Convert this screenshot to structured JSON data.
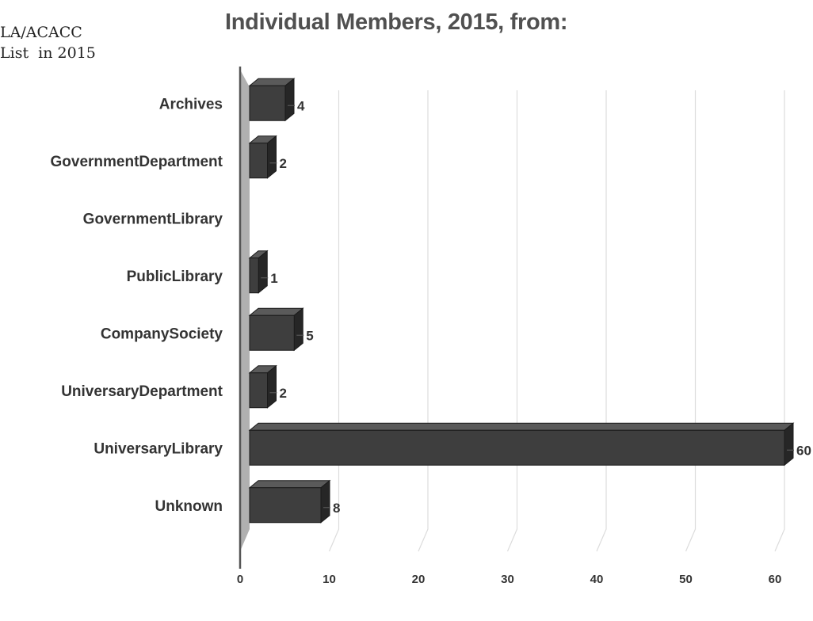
{
  "page": {
    "corner_text": "LA/ACACC\nList  in 2015"
  },
  "chart_data": {
    "type": "bar",
    "orientation": "horizontal",
    "style": "3d",
    "title": "Individual Members, 2015, from:",
    "categories": [
      "Archives",
      "GovernmentDepartment",
      "GovernmentLibrary",
      "PublicLibrary",
      "CompanySociety",
      "UniversaryDepartment",
      "UniversaryLibrary",
      "Unknown"
    ],
    "values": [
      4,
      2,
      null,
      1,
      5,
      2,
      60,
      8
    ],
    "data_labels": [
      "4",
      "2",
      "",
      "1",
      "5",
      "2",
      "60",
      "8"
    ],
    "xlim": [
      0,
      60
    ],
    "xticks": [
      "0",
      "10",
      "20",
      "30",
      "40",
      "50",
      "60"
    ],
    "xlabel": "",
    "ylabel": "",
    "grid": true,
    "legend": "none",
    "colors": {
      "bar_front": "#3e3e3e",
      "bar_side": "#262626",
      "bar_top": "#5a5a5a",
      "wall": "#b0b0b0",
      "grid": "#dcdcdc",
      "text": "#333333"
    }
  }
}
